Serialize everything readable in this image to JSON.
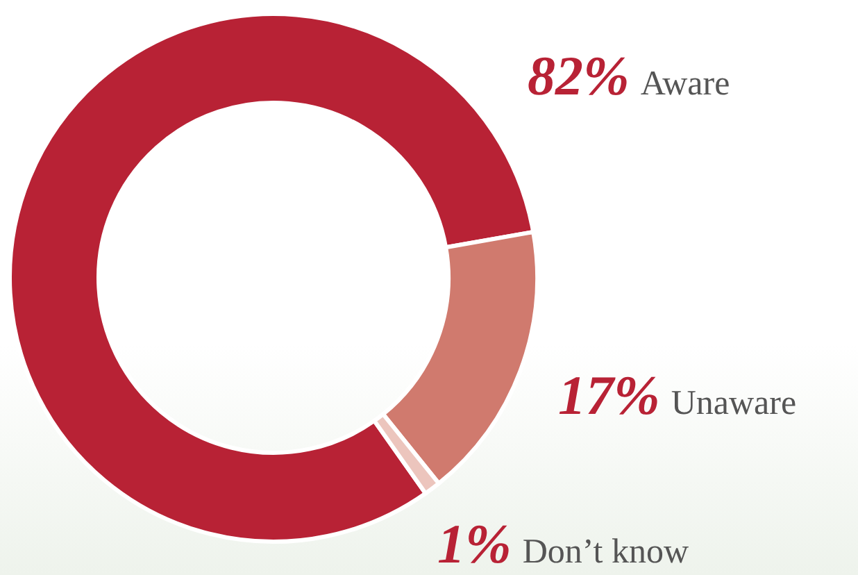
{
  "chart_data": {
    "type": "donut",
    "categories": [
      "Aware",
      "Unaware",
      "Don’t know"
    ],
    "values": [
      82,
      17,
      1
    ],
    "colors": [
      "#b82235",
      "#d07a6e",
      "#ecc5bd"
    ],
    "value_labels": [
      "82%",
      "17%",
      "1%"
    ],
    "legend": false
  }
}
